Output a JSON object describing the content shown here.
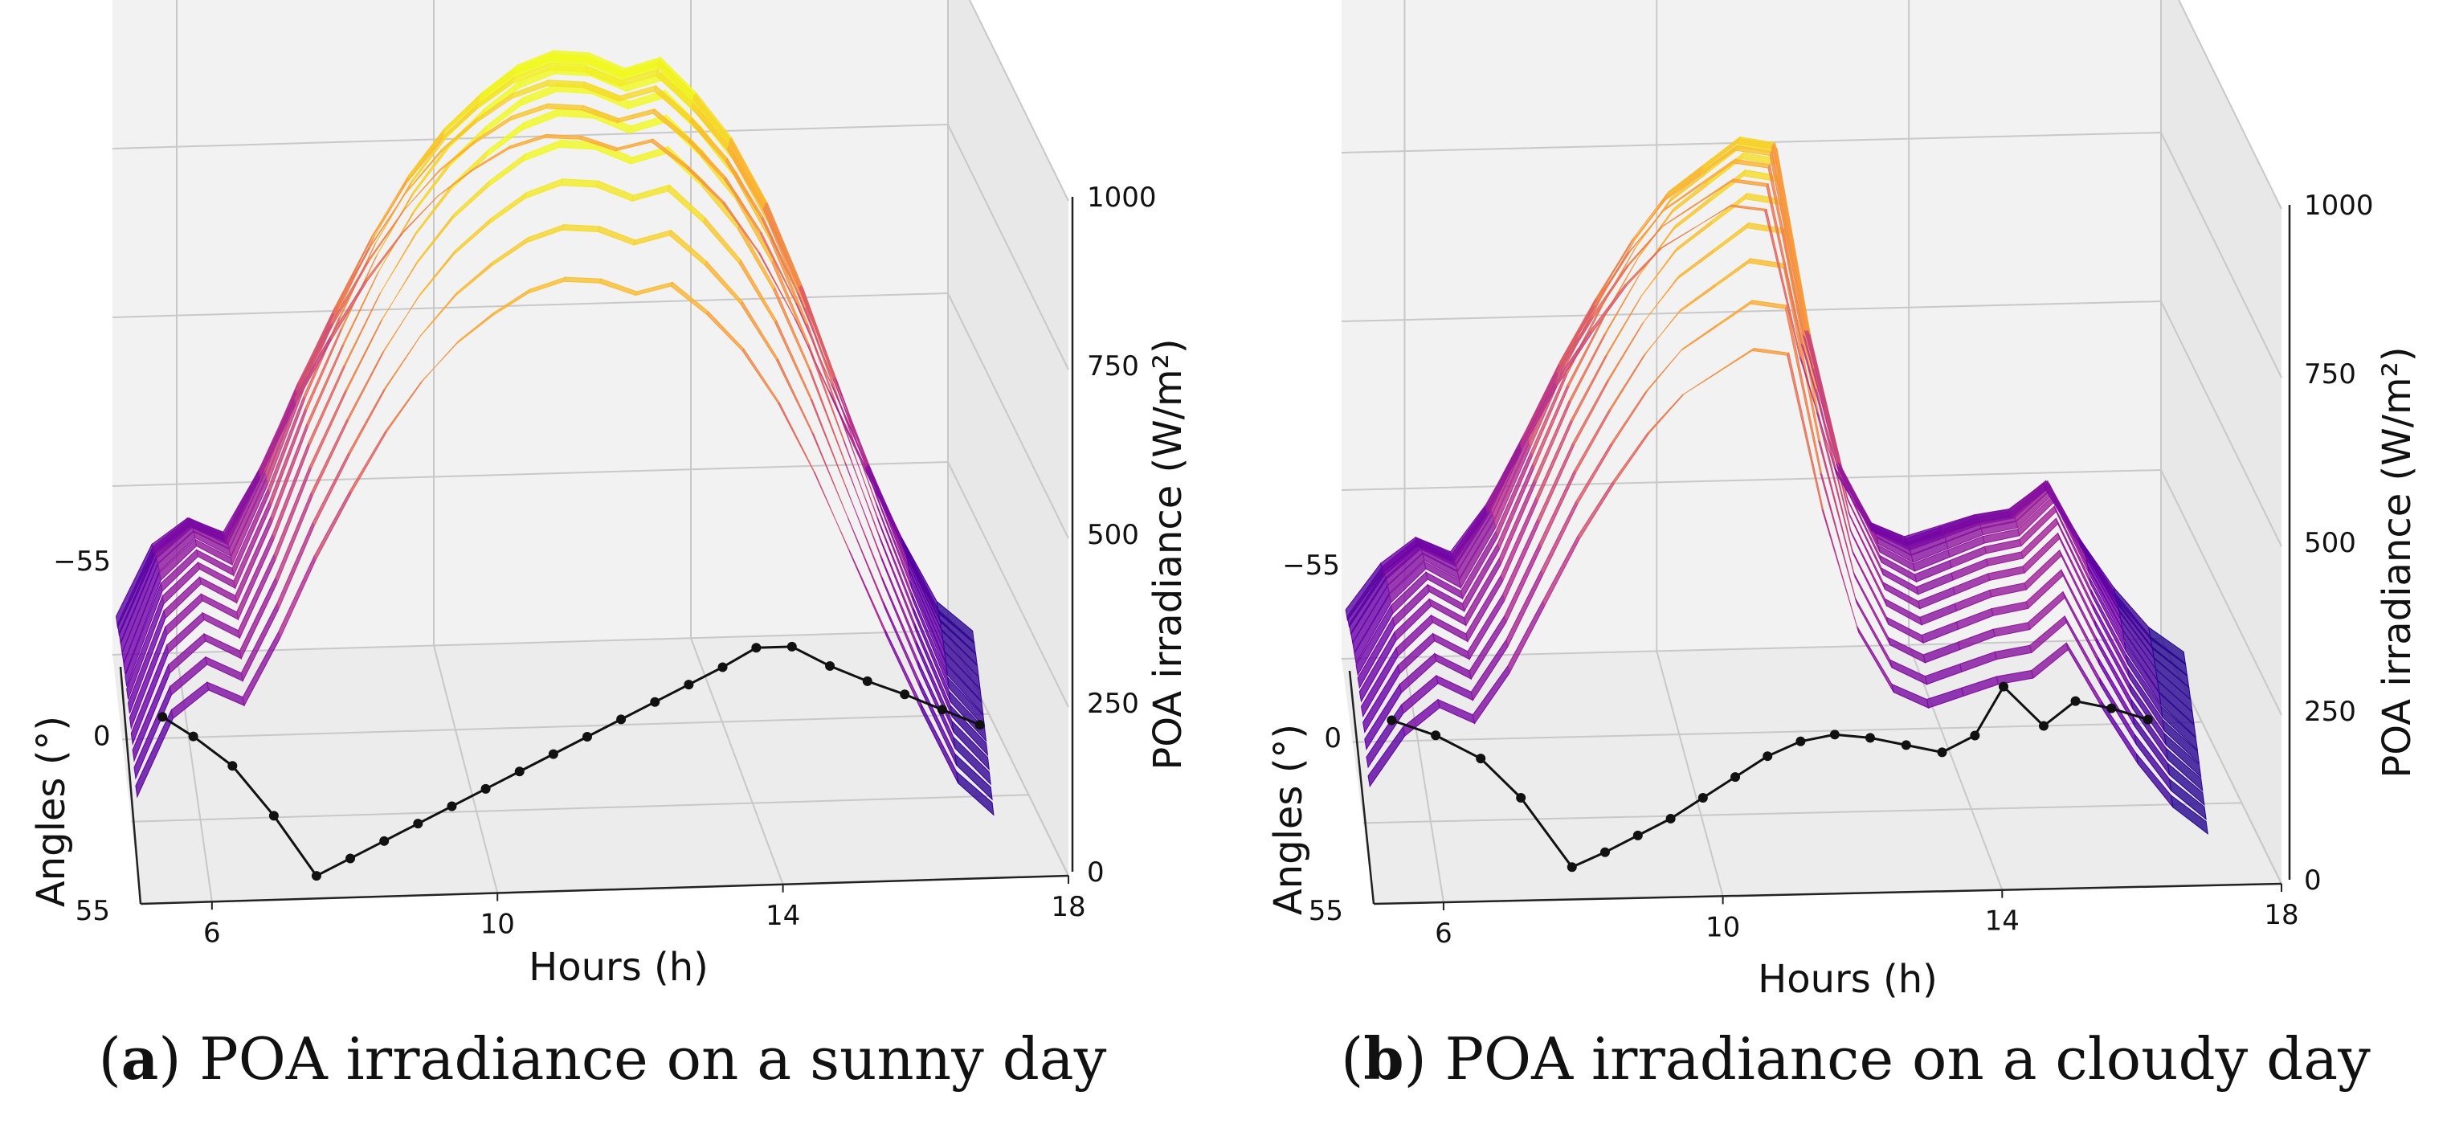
{
  "chart_data": [
    {
      "type": "surface3d",
      "panel": "a",
      "caption_letter": "a",
      "caption_text": "POA irradiance on a sunny day",
      "caption_open": "(",
      "caption_close": ")",
      "xlabel": "Hours (h)",
      "ylabel": "Angles (°)",
      "zlabel": "POA irradiance (W/m²)",
      "xlim": [
        5,
        18
      ],
      "zlim": [
        0,
        1000
      ],
      "x_ticks": [
        "6",
        "10",
        "14",
        "18"
      ],
      "y_ticks": [
        "−55",
        "0",
        "55"
      ],
      "z_ticks": [
        "0",
        "250",
        "500",
        "750",
        "1000"
      ],
      "colormap": [
        "#0d0887",
        "#6a00a8",
        "#b12a90",
        "#e16462",
        "#fca636",
        "#f0f921"
      ],
      "surface_peak_irradiance": [
        {
          "x": 5.0,
          "z": 140
        },
        {
          "x": 5.5,
          "z": 280
        },
        {
          "x": 6.0,
          "z": 330
        },
        {
          "x": 6.5,
          "z": 300
        },
        {
          "x": 7.0,
          "z": 420
        },
        {
          "x": 7.5,
          "z": 560
        },
        {
          "x": 8.0,
          "z": 680
        },
        {
          "x": 8.5,
          "z": 790
        },
        {
          "x": 9.0,
          "z": 880
        },
        {
          "x": 9.5,
          "z": 950
        },
        {
          "x": 10.0,
          "z": 1000
        },
        {
          "x": 10.5,
          "z": 1040
        },
        {
          "x": 11.0,
          "z": 1060
        },
        {
          "x": 11.5,
          "z": 1055
        },
        {
          "x": 12.0,
          "z": 1030
        },
        {
          "x": 12.5,
          "z": 1045
        },
        {
          "x": 13.0,
          "z": 990
        },
        {
          "x": 13.5,
          "z": 920
        },
        {
          "x": 14.0,
          "z": 820
        },
        {
          "x": 14.5,
          "z": 690
        },
        {
          "x": 15.0,
          "z": 540
        },
        {
          "x": 15.5,
          "z": 390
        },
        {
          "x": 16.0,
          "z": 250
        },
        {
          "x": 16.5,
          "z": 120
        },
        {
          "x": 17.0,
          "z": 60
        }
      ],
      "tracking_angle": [
        {
          "x": 5.6,
          "y": -30
        },
        {
          "x": 6.0,
          "y": -20
        },
        {
          "x": 6.5,
          "y": -5
        },
        {
          "x": 7.0,
          "y": 20
        },
        {
          "x": 7.5,
          "y": 50
        },
        {
          "x": 8.0,
          "y": 42
        },
        {
          "x": 8.5,
          "y": 34
        },
        {
          "x": 9.0,
          "y": 26
        },
        {
          "x": 9.5,
          "y": 18
        },
        {
          "x": 10.0,
          "y": 10
        },
        {
          "x": 10.5,
          "y": 2
        },
        {
          "x": 11.0,
          "y": -6
        },
        {
          "x": 11.5,
          "y": -14
        },
        {
          "x": 12.0,
          "y": -22
        },
        {
          "x": 12.5,
          "y": -30
        },
        {
          "x": 13.0,
          "y": -38
        },
        {
          "x": 13.5,
          "y": -46
        },
        {
          "x": 14.0,
          "y": -55
        },
        {
          "x": 14.5,
          "y": -55
        },
        {
          "x": 15.0,
          "y": -45
        },
        {
          "x": 15.5,
          "y": -37
        },
        {
          "x": 16.0,
          "y": -30
        },
        {
          "x": 16.5,
          "y": -22
        },
        {
          "x": 17.0,
          "y": -14
        }
      ]
    },
    {
      "type": "surface3d",
      "panel": "b",
      "caption_letter": "b",
      "caption_text": "POA irradiance on a cloudy day",
      "caption_open": "(",
      "caption_close": ")",
      "xlabel": "Hours (h)",
      "ylabel": "Angles (°)",
      "zlabel": "POA irradiance (W/m²)",
      "xlim": [
        5,
        18
      ],
      "zlim": [
        0,
        1000
      ],
      "x_ticks": [
        "6",
        "10",
        "14",
        "18"
      ],
      "y_ticks": [
        "−55",
        "0",
        "55"
      ],
      "z_ticks": [
        "0",
        "250",
        "500",
        "750",
        "1000"
      ],
      "colormap": [
        "#0d0887",
        "#6a00a8",
        "#b12a90",
        "#e16462",
        "#fca636",
        "#f0f921"
      ],
      "surface_peak_irradiance": [
        {
          "x": 5.0,
          "z": 160
        },
        {
          "x": 5.5,
          "z": 250
        },
        {
          "x": 6.0,
          "z": 300
        },
        {
          "x": 6.5,
          "z": 270
        },
        {
          "x": 7.0,
          "z": 360
        },
        {
          "x": 7.5,
          "z": 480
        },
        {
          "x": 8.0,
          "z": 600
        },
        {
          "x": 8.5,
          "z": 700
        },
        {
          "x": 9.0,
          "z": 790
        },
        {
          "x": 9.5,
          "z": 860
        },
        {
          "x": 10.0,
          "z": 900
        },
        {
          "x": 10.5,
          "z": 940
        },
        {
          "x": 11.0,
          "z": 930
        },
        {
          "x": 11.5,
          "z": 640
        },
        {
          "x": 12.0,
          "z": 420
        },
        {
          "x": 12.5,
          "z": 310
        },
        {
          "x": 13.0,
          "z": 280
        },
        {
          "x": 13.5,
          "z": 300
        },
        {
          "x": 14.0,
          "z": 320
        },
        {
          "x": 14.5,
          "z": 330
        },
        {
          "x": 15.0,
          "z": 380
        },
        {
          "x": 15.5,
          "z": 270
        },
        {
          "x": 16.0,
          "z": 170
        },
        {
          "x": 16.5,
          "z": 90
        },
        {
          "x": 17.0,
          "z": 40
        }
      ],
      "tracking_angle": [
        {
          "x": 5.6,
          "y": -30
        },
        {
          "x": 6.2,
          "y": -22
        },
        {
          "x": 6.8,
          "y": -10
        },
        {
          "x": 7.3,
          "y": 10
        },
        {
          "x": 7.9,
          "y": 45
        },
        {
          "x": 8.4,
          "y": 38
        },
        {
          "x": 8.9,
          "y": 30
        },
        {
          "x": 9.4,
          "y": 22
        },
        {
          "x": 9.9,
          "y": 12
        },
        {
          "x": 10.4,
          "y": 2
        },
        {
          "x": 10.9,
          "y": -8
        },
        {
          "x": 11.4,
          "y": -15
        },
        {
          "x": 11.9,
          "y": -18
        },
        {
          "x": 12.4,
          "y": -16
        },
        {
          "x": 12.9,
          "y": -12
        },
        {
          "x": 13.4,
          "y": -8
        },
        {
          "x": 13.9,
          "y": -16
        },
        {
          "x": 14.4,
          "y": -40
        },
        {
          "x": 14.9,
          "y": -20
        },
        {
          "x": 15.4,
          "y": -32
        },
        {
          "x": 15.9,
          "y": -28
        },
        {
          "x": 16.4,
          "y": -22
        }
      ]
    }
  ]
}
